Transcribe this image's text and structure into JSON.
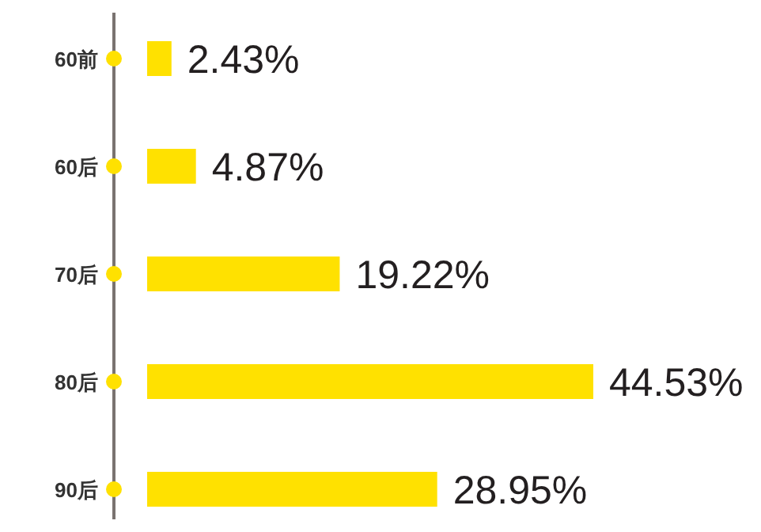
{
  "chart_data": {
    "type": "bar",
    "orientation": "horizontal",
    "categories": [
      "60前",
      "60后",
      "70后",
      "80后",
      "90后"
    ],
    "values": [
      2.43,
      4.87,
      19.22,
      44.53,
      28.95
    ],
    "value_labels": [
      "2.43%",
      "4.87%",
      "19.22%",
      "44.53%",
      "28.95%"
    ],
    "color": "#ffe100"
  }
}
